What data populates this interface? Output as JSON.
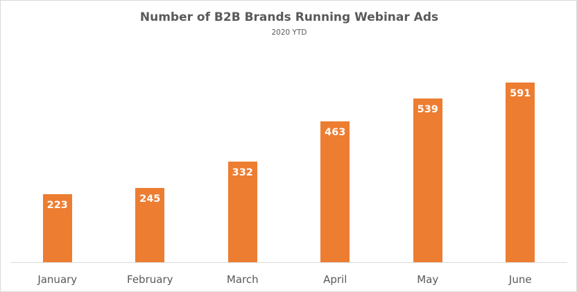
{
  "chart_data": {
    "type": "bar",
    "title": "Number of B2B Brands Running Webinar Ads",
    "subtitle": "2020 YTD",
    "categories": [
      "January",
      "February",
      "March",
      "April",
      "May",
      "June"
    ],
    "values": [
      223,
      245,
      332,
      463,
      539,
      591
    ],
    "value_labels": [
      "223",
      "245",
      "332",
      "463",
      "539",
      "591"
    ],
    "xlabel": "",
    "ylabel": "",
    "ylim": [
      0,
      600
    ],
    "grid": false,
    "legend": null,
    "bar_color": "#ed7d31",
    "data_labels": "inside-end"
  }
}
